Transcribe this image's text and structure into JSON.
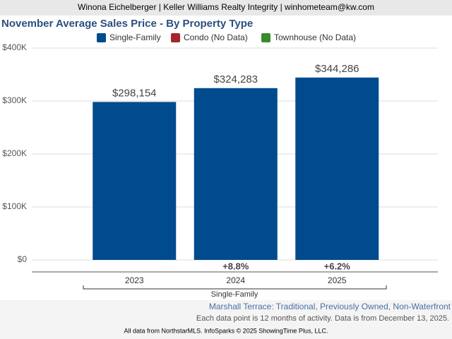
{
  "header": "Winona Eichelberger | Keller Williams Realty Integrity | winhometeam@kw.com",
  "chart_data": {
    "type": "bar",
    "title": "November Average Sales Price - By Property Type",
    "categories": [
      "2023",
      "2024",
      "2025"
    ],
    "series": [
      {
        "name": "Single-Family",
        "color": "#004b8d",
        "values": [
          298154,
          324283,
          344286
        ],
        "value_labels": [
          "$298,154",
          "$324,283",
          "$344,286"
        ]
      },
      {
        "name": "Condo (No Data)",
        "color": "#a4262c",
        "values": [
          null,
          null,
          null
        ]
      },
      {
        "name": "Townhouse (No Data)",
        "color": "#3a8a2e",
        "values": [
          null,
          null,
          null
        ]
      }
    ],
    "change_labels": [
      null,
      "+8.8%",
      "+6.2%"
    ],
    "x_group_label": "Single-Family",
    "ylim": [
      0,
      400000
    ],
    "yticks": [
      {
        "value": 0,
        "label": "$0"
      },
      {
        "value": 100000,
        "label": "$100K"
      },
      {
        "value": 200000,
        "label": "$200K"
      },
      {
        "value": 300000,
        "label": "$300K"
      },
      {
        "value": 400000,
        "label": "$400K"
      }
    ],
    "grid": true
  },
  "subtitle": "Marshall Terrace: Traditional, Previously Owned, Non-Waterfront",
  "note": "Each data point is 12 months of activity. Data is from December 13, 2025.",
  "footer": "All data from NorthstarMLS. InfoSparks © 2025 ShowingTime Plus, LLC."
}
